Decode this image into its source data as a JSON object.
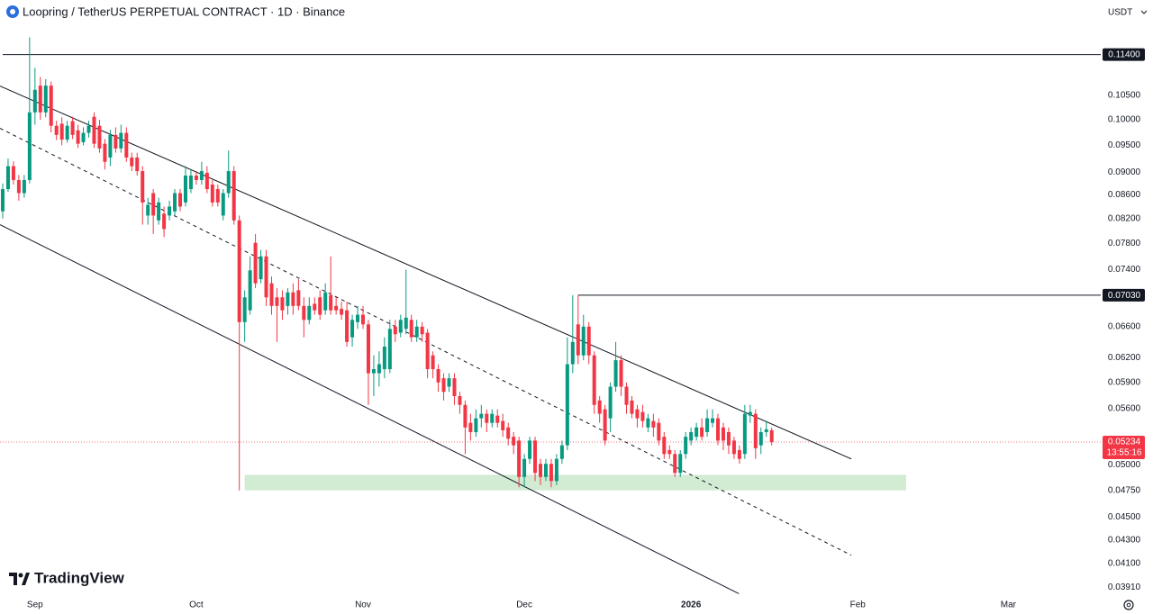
{
  "chart_data": {
    "type": "candlestick",
    "title": "Loopring / TetherUS PERPETUAL CONTRACT · 1D · Binance",
    "currency": "USDT",
    "brand": "TradingView",
    "log_scale": true,
    "grid": false,
    "up_color": "#089981",
    "down_color": "#f23645",
    "ylim": [
      0.03856,
      0.1272
    ],
    "yticks": [
      {
        "value": 0.105,
        "label": "0.10500"
      },
      {
        "value": 0.1,
        "label": "0.10000"
      },
      {
        "value": 0.095,
        "label": "0.09500"
      },
      {
        "value": 0.09,
        "label": "0.09000"
      },
      {
        "value": 0.086,
        "label": "0.08600"
      },
      {
        "value": 0.082,
        "label": "0.08200"
      },
      {
        "value": 0.078,
        "label": "0.07800"
      },
      {
        "value": 0.074,
        "label": "0.07400"
      },
      {
        "value": 0.066,
        "label": "0.06600"
      },
      {
        "value": 0.062,
        "label": "0.06200"
      },
      {
        "value": 0.059,
        "label": "0.05900"
      },
      {
        "value": 0.056,
        "label": "0.05600"
      },
      {
        "value": 0.05,
        "label": "0.05000"
      },
      {
        "value": 0.0475,
        "label": "0.04750"
      },
      {
        "value": 0.045,
        "label": "0.04500"
      },
      {
        "value": 0.043,
        "label": "0.04300"
      },
      {
        "value": 0.041,
        "label": "0.04100"
      },
      {
        "value": 0.0391,
        "label": "0.03910"
      }
    ],
    "categories": [
      null,
      null,
      null,
      null,
      null,
      null,
      "Sep",
      null,
      null,
      null,
      null,
      null,
      null,
      null,
      null,
      null,
      null,
      null,
      null,
      null,
      null,
      null,
      null,
      null,
      null,
      null,
      null,
      null,
      null,
      null,
      null,
      null,
      null,
      null,
      null,
      null,
      "Oct",
      null,
      null,
      null,
      null,
      null,
      null,
      null,
      null,
      null,
      null,
      null,
      null,
      null,
      null,
      null,
      null,
      null,
      null,
      null,
      null,
      null,
      null,
      null,
      null,
      null,
      null,
      null,
      null,
      null,
      null,
      "Nov",
      null,
      null,
      null,
      null,
      null,
      null,
      null,
      null,
      null,
      null,
      null,
      null,
      null,
      null,
      null,
      null,
      null,
      null,
      null,
      null,
      null,
      null,
      null,
      null,
      null,
      null,
      null,
      null,
      null,
      "Dec",
      null,
      null,
      null,
      null,
      null,
      null,
      null,
      null,
      null,
      null,
      null,
      null,
      null,
      null,
      null,
      null,
      null,
      null,
      null,
      null,
      null,
      null,
      null,
      null,
      null,
      null,
      null,
      null,
      null,
      null,
      "2026",
      null,
      null,
      null,
      null,
      null,
      null,
      null,
      null,
      null,
      null,
      null,
      null,
      null,
      null,
      null,
      null,
      null,
      null,
      null,
      null,
      null,
      null,
      null,
      null,
      null,
      null,
      null,
      null,
      null,
      null,
      "Feb",
      null,
      null,
      null,
      null,
      null,
      null,
      null,
      null,
      null,
      null,
      null,
      null,
      null,
      null,
      null,
      null,
      null,
      null,
      null,
      null,
      null,
      null,
      null,
      null,
      null,
      null,
      null,
      "Mar",
      null,
      null
    ],
    "open": [
      0.0832,
      0.087,
      0.0911,
      0.0886,
      0.0863,
      0.0886,
      0.1015,
      0.1071,
      0.1015,
      0.1071,
      0.0988,
      0.0992,
      0.0961,
      0.0997,
      0.0979,
      0.0956,
      0.0974,
      0.1006,
      0.0988,
      0.0953,
      0.0927,
      0.097,
      0.0944,
      0.0974,
      0.0927,
      0.0927,
      0.0902,
      0.0825,
      0.0863,
      0.0817,
      0.0828,
      0.0825,
      0.0832,
      0.0863,
      0.0847,
      0.087,
      0.0894,
      0.0886,
      0.0899,
      0.0878,
      0.087,
      0.0825,
      0.0863,
      0.0902,
      0.0817,
      0.0666,
      0.0682,
      0.0781,
      0.0726,
      0.076,
      0.072,
      0.07,
      0.07,
      0.0688,
      0.0707,
      0.071,
      0.0688,
      0.0669,
      0.0691,
      0.07,
      0.0682,
      0.0703,
      0.0688,
      0.0684,
      0.0682,
      0.0646,
      0.0666,
      0.0676,
      0.0663,
      0.0601,
      0.0601,
      0.0606,
      0.0606,
      0.066,
      0.0652,
      0.0657,
      0.0669,
      0.0646,
      0.066,
      0.0652,
      0.0623,
      0.0606,
      0.0595,
      0.0585,
      0.0595,
      0.0574,
      0.0564,
      0.0544,
      0.0534,
      0.0549,
      0.0554,
      0.0544,
      0.0552,
      0.0546,
      0.0539,
      0.0529,
      0.0525,
      0.0488,
      0.0506,
      0.0525,
      0.0501,
      0.0488,
      0.0501,
      0.0484,
      0.0506,
      0.052,
      0.0612,
      0.0663,
      0.0623,
      0.066,
      0.0623,
      0.0569,
      0.0559,
      0.0549,
      0.0585,
      0.0617,
      0.0585,
      0.0569,
      0.0559,
      0.0556,
      0.0539,
      0.0546,
      0.0544,
      0.0529,
      0.0515,
      0.0511,
      0.0492,
      0.0511,
      0.0525,
      0.0529,
      0.0539,
      0.0534,
      0.0544,
      0.0549,
      0.0539,
      0.0534,
      0.0525,
      0.0515,
      0.0511,
      0.0552,
      0.0554,
      0.052,
      0.0534,
      0.0536,
      null,
      null,
      null,
      null,
      null,
      null,
      null,
      null,
      null,
      null,
      null,
      null,
      null,
      null,
      null,
      null,
      null,
      null,
      null,
      null,
      null,
      null,
      null,
      null,
      null,
      null,
      null,
      null,
      null,
      null,
      null,
      null,
      null,
      null,
      null,
      null,
      null,
      null,
      null,
      null,
      null,
      null,
      null,
      null,
      null,
      null
    ],
    "high": [
      0.088,
      0.0925,
      0.092,
      0.0895,
      0.0895,
      0.118,
      0.111,
      0.109,
      0.1085,
      0.108,
      0.0998,
      0.1005,
      0.0998,
      0.1006,
      0.099,
      0.0985,
      0.0998,
      0.1015,
      0.1,
      0.0962,
      0.098,
      0.0985,
      0.099,
      0.0985,
      0.0936,
      0.0936,
      0.0911,
      0.0855,
      0.087,
      0.0855,
      0.084,
      0.085,
      0.087,
      0.087,
      0.0911,
      0.0905,
      0.0902,
      0.0919,
      0.0911,
      0.0886,
      0.0878,
      0.087,
      0.094,
      0.0911,
      0.0825,
      0.071,
      0.076,
      0.0795,
      0.077,
      0.077,
      0.073,
      0.0713,
      0.071,
      0.0713,
      0.072,
      0.0726,
      0.07,
      0.07,
      0.07,
      0.071,
      0.072,
      0.076,
      0.07,
      0.0694,
      0.0694,
      0.0676,
      0.0688,
      0.0688,
      0.0669,
      0.0623,
      0.0628,
      0.0646,
      0.0669,
      0.0669,
      0.0676,
      0.074,
      0.0676,
      0.0669,
      0.0666,
      0.0657,
      0.0628,
      0.0612,
      0.0601,
      0.0601,
      0.0601,
      0.0579,
      0.0569,
      0.0554,
      0.0559,
      0.0564,
      0.0559,
      0.0559,
      0.0559,
      0.0554,
      0.0544,
      0.0534,
      0.0529,
      0.0511,
      0.0529,
      0.0529,
      0.0506,
      0.0506,
      0.0506,
      0.0511,
      0.0525,
      0.0646,
      0.0703,
      0.0703,
      0.0676,
      0.0666,
      0.0628,
      0.0574,
      0.0564,
      0.059,
      0.064,
      0.0623,
      0.059,
      0.0574,
      0.0564,
      0.0564,
      0.0554,
      0.0554,
      0.0549,
      0.0534,
      0.052,
      0.0515,
      0.0515,
      0.0534,
      0.0539,
      0.0544,
      0.0549,
      0.0559,
      0.0559,
      0.0554,
      0.0544,
      0.0539,
      0.0529,
      0.052,
      0.0564,
      0.0564,
      0.0559,
      0.0539,
      0.0546,
      0.0539,
      null,
      null,
      null,
      null,
      null,
      null,
      null,
      null,
      null,
      null,
      null,
      null,
      null,
      null,
      null,
      null,
      null,
      null,
      null,
      null,
      null,
      null,
      null,
      null,
      null,
      null,
      null,
      null,
      null,
      null,
      null,
      null,
      null,
      null,
      null,
      null,
      null,
      null,
      null,
      null,
      null,
      null,
      null,
      null,
      null,
      null
    ],
    "low": [
      0.082,
      0.0865,
      0.0878,
      0.085,
      0.0855,
      0.088,
      0.099,
      0.1,
      0.1005,
      0.0975,
      0.096,
      0.095,
      0.0955,
      0.0962,
      0.0945,
      0.095,
      0.0965,
      0.0945,
      0.0936,
      0.0905,
      0.0911,
      0.0936,
      0.0936,
      0.0919,
      0.0902,
      0.0894,
      0.081,
      0.081,
      0.0795,
      0.081,
      0.079,
      0.0817,
      0.0825,
      0.0832,
      0.084,
      0.0863,
      0.0878,
      0.0878,
      0.0863,
      0.084,
      0.084,
      0.0817,
      0.0855,
      0.081,
      0.0475,
      0.064,
      0.0676,
      0.0713,
      0.072,
      0.0688,
      0.0676,
      0.064,
      0.0669,
      0.0676,
      0.0676,
      0.0682,
      0.0646,
      0.0663,
      0.0676,
      0.0669,
      0.0676,
      0.0676,
      0.0676,
      0.0669,
      0.0634,
      0.0634,
      0.0657,
      0.0657,
      0.0564,
      0.0574,
      0.0585,
      0.0595,
      0.0601,
      0.064,
      0.0646,
      0.065,
      0.064,
      0.064,
      0.064,
      0.0595,
      0.0595,
      0.0579,
      0.0569,
      0.0579,
      0.0564,
      0.0554,
      0.0511,
      0.0525,
      0.0529,
      0.0539,
      0.0534,
      0.0539,
      0.0539,
      0.0529,
      0.052,
      0.0511,
      0.0478,
      0.0478,
      0.0501,
      0.0484,
      0.048,
      0.0484,
      0.0478,
      0.048,
      0.0501,
      0.0515,
      0.0601,
      0.0612,
      0.0617,
      0.0612,
      0.0554,
      0.0544,
      0.052,
      0.0534,
      0.0579,
      0.0574,
      0.0554,
      0.0549,
      0.0539,
      0.0539,
      0.0534,
      0.0529,
      0.052,
      0.0506,
      0.0506,
      0.0488,
      0.0488,
      0.0506,
      0.052,
      0.0525,
      0.0525,
      0.0529,
      0.0539,
      0.052,
      0.0515,
      0.0511,
      0.0506,
      0.0501,
      0.0506,
      0.0544,
      0.0506,
      0.0511,
      0.0529,
      0.052,
      null,
      null,
      null,
      null,
      null,
      null,
      null,
      null,
      null,
      null,
      null,
      null,
      null,
      null,
      null,
      null,
      null,
      null,
      null,
      null,
      null,
      null,
      null,
      null,
      null,
      null,
      null,
      null,
      null,
      null,
      null,
      null,
      null,
      null,
      null,
      null,
      null,
      null,
      null,
      null,
      null,
      null,
      null,
      null,
      null,
      null
    ],
    "close": [
      0.087,
      0.0911,
      0.0886,
      0.0863,
      0.0886,
      0.1015,
      0.1062,
      0.1015,
      0.1071,
      0.0988,
      0.097,
      0.0961,
      0.0988,
      0.097,
      0.0953,
      0.0974,
      0.0988,
      0.0953,
      0.0944,
      0.0919,
      0.097,
      0.0944,
      0.0974,
      0.0927,
      0.0911,
      0.0902,
      0.0847,
      0.0843,
      0.0825,
      0.0847,
      0.0803,
      0.084,
      0.0863,
      0.084,
      0.0894,
      0.0894,
      0.0886,
      0.0902,
      0.087,
      0.0847,
      0.0847,
      0.0863,
      0.0902,
      0.0817,
      0.0666,
      0.07,
      0.0739,
      0.072,
      0.076,
      0.07,
      0.0688,
      0.0688,
      0.0682,
      0.0707,
      0.0688,
      0.0688,
      0.0669,
      0.0688,
      0.0682,
      0.0676,
      0.0707,
      0.0682,
      0.0682,
      0.0676,
      0.064,
      0.0669,
      0.0676,
      0.0663,
      0.0601,
      0.0606,
      0.0612,
      0.0634,
      0.0657,
      0.065,
      0.0669,
      0.0672,
      0.0646,
      0.066,
      0.065,
      0.0606,
      0.0606,
      0.059,
      0.0579,
      0.0595,
      0.0574,
      0.0564,
      0.0539,
      0.0534,
      0.0549,
      0.0554,
      0.0544,
      0.0554,
      0.0544,
      0.0536,
      0.0527,
      0.052,
      0.0488,
      0.0506,
      0.0525,
      0.0492,
      0.0488,
      0.0501,
      0.0484,
      0.0506,
      0.052,
      0.0612,
      0.064,
      0.0623,
      0.066,
      0.0623,
      0.0564,
      0.0554,
      0.0525,
      0.0585,
      0.0617,
      0.0585,
      0.0564,
      0.0554,
      0.0549,
      0.0546,
      0.0549,
      0.0539,
      0.0525,
      0.0511,
      0.0511,
      0.0492,
      0.0511,
      0.0529,
      0.0534,
      0.0539,
      0.0529,
      0.0549,
      0.0549,
      0.0525,
      0.0525,
      0.052,
      0.0511,
      0.0506,
      0.0554,
      0.0556,
      0.0517,
      0.0534,
      0.0537,
      0.05234,
      null,
      null,
      null,
      null,
      null,
      null,
      null,
      null,
      null,
      null,
      null,
      null,
      null,
      null,
      null,
      null,
      null,
      null,
      null,
      null,
      null,
      null,
      null,
      null,
      null,
      null,
      null,
      null,
      null,
      null,
      null,
      null,
      null,
      null,
      null,
      null,
      null,
      null,
      null,
      null,
      null,
      null,
      null,
      null,
      null,
      null
    ],
    "horizontal_lines": [
      {
        "value": 0.114,
        "label": "0.11400",
        "x_start": 0
      },
      {
        "value": 0.0703,
        "label": "0.07030",
        "x_start": 107
      }
    ],
    "current_price": {
      "value": 0.05234,
      "label": "0.05234",
      "countdown": "13:55:16"
    },
    "zone": {
      "y": [
        0.0475,
        0.049
      ],
      "x": [
        45,
        168
      ],
      "color": "#4caf50"
    },
    "trendlines": [
      {
        "style": "solid",
        "points": [
          [
            -0.5,
            0.107
          ],
          [
            157.8,
            0.0506
          ]
        ]
      },
      {
        "style": "dashed",
        "points": [
          [
            -0.5,
            0.0983
          ],
          [
            157.8,
            0.0417
          ]
        ]
      },
      {
        "style": "solid",
        "points": [
          [
            -0.5,
            0.081
          ],
          [
            136.9,
            0.0386
          ]
        ]
      }
    ]
  }
}
